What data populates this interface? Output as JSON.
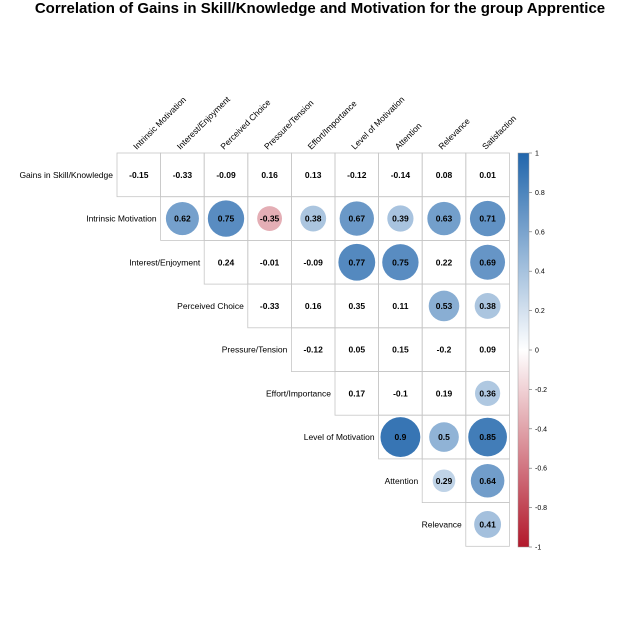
{
  "chart_data": {
    "type": "heatmap",
    "title": "Correlation of Gains in Skill/Knowledge and Motivation for the group Apprentice",
    "columns": [
      "Intrinsic Motivation",
      "Interest/Enjoyment",
      "Perceived Choice",
      "Pressure/Tension",
      "Effort/Importance",
      "Level of Motivation",
      "Attention",
      "Relevance",
      "Satisfaction"
    ],
    "rows": [
      "Gains in Skill/Knowledge",
      "Intrinsic Motivation",
      "Interest/Enjoyment",
      "Perceived Choice",
      "Pressure/Tension",
      "Effort/Importance",
      "Level of Motivation",
      "Attention",
      "Relevance"
    ],
    "values": [
      [
        -0.15,
        -0.33,
        -0.09,
        0.16,
        0.13,
        -0.12,
        -0.14,
        0.08,
        0.01
      ],
      [
        null,
        0.62,
        0.75,
        -0.35,
        0.38,
        0.67,
        0.39,
        0.63,
        0.71
      ],
      [
        null,
        null,
        0.24,
        -0.01,
        -0.09,
        0.77,
        0.75,
        0.22,
        0.69
      ],
      [
        null,
        null,
        null,
        -0.33,
        0.16,
        0.35,
        0.11,
        0.53,
        0.38
      ],
      [
        null,
        null,
        null,
        null,
        -0.12,
        0.05,
        0.15,
        -0.2,
        0.09
      ],
      [
        null,
        null,
        null,
        null,
        null,
        0.17,
        -0.1,
        0.19,
        0.36
      ],
      [
        null,
        null,
        null,
        null,
        null,
        null,
        0.9,
        0.5,
        0.85
      ],
      [
        null,
        null,
        null,
        null,
        null,
        null,
        null,
        0.29,
        0.64
      ],
      [
        null,
        null,
        null,
        null,
        null,
        null,
        null,
        null,
        0.41
      ]
    ],
    "circle_rows": [
      1,
      6,
      7,
      8
    ],
    "circle_cells": [
      [
        1,
        3
      ],
      [
        1,
        5
      ],
      [
        1,
        6
      ],
      [
        2,
        5
      ],
      [
        2,
        6
      ],
      [
        2,
        8
      ],
      [
        3,
        7
      ],
      [
        3,
        8
      ],
      [
        5,
        8
      ]
    ],
    "legend": {
      "ticks": [
        "1",
        "0.8",
        "0.6",
        "0.4",
        "0.2",
        "0",
        "-0.2",
        "-0.4",
        "-0.6",
        "-0.8",
        "-1"
      ],
      "range": [
        -1,
        1
      ],
      "placement": "right"
    },
    "colors": {
      "negative": "#b2182b",
      "neutral": "#ffffff",
      "positive": "#2166ac"
    }
  }
}
